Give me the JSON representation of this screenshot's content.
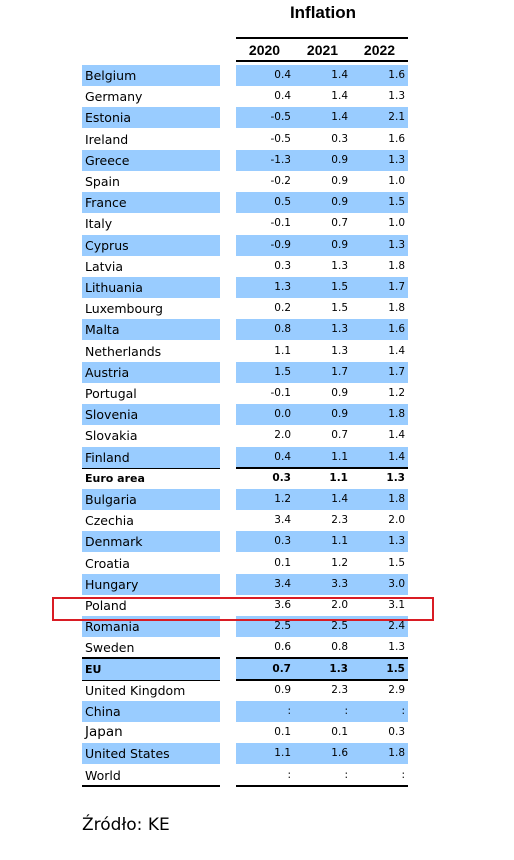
{
  "chart_data": {
    "type": "table",
    "title": "Inflation",
    "columns": [
      "2020",
      "2021",
      "2022"
    ],
    "rows": [
      {
        "name": "Belgium",
        "values": [
          "0.4",
          "1.4",
          "1.6"
        ],
        "shaded": true
      },
      {
        "name": "Germany",
        "values": [
          "0.4",
          "1.4",
          "1.3"
        ],
        "shaded": false
      },
      {
        "name": "Estonia",
        "values": [
          "-0.5",
          "1.4",
          "2.1"
        ],
        "shaded": true
      },
      {
        "name": "Ireland",
        "values": [
          "-0.5",
          "0.3",
          "1.6"
        ],
        "shaded": false
      },
      {
        "name": "Greece",
        "values": [
          "-1.3",
          "0.9",
          "1.3"
        ],
        "shaded": true
      },
      {
        "name": "Spain",
        "values": [
          "-0.2",
          "0.9",
          "1.0"
        ],
        "shaded": false
      },
      {
        "name": "France",
        "values": [
          "0.5",
          "0.9",
          "1.5"
        ],
        "shaded": true
      },
      {
        "name": "Italy",
        "values": [
          "-0.1",
          "0.7",
          "1.0"
        ],
        "shaded": false
      },
      {
        "name": "Cyprus",
        "values": [
          "-0.9",
          "0.9",
          "1.3"
        ],
        "shaded": true
      },
      {
        "name": "Latvia",
        "values": [
          "0.3",
          "1.3",
          "1.8"
        ],
        "shaded": false
      },
      {
        "name": "Lithuania",
        "values": [
          "1.3",
          "1.5",
          "1.7"
        ],
        "shaded": true
      },
      {
        "name": "Luxembourg",
        "values": [
          "0.2",
          "1.5",
          "1.8"
        ],
        "shaded": false
      },
      {
        "name": "Malta",
        "values": [
          "0.8",
          "1.3",
          "1.6"
        ],
        "shaded": true
      },
      {
        "name": "Netherlands",
        "values": [
          "1.1",
          "1.3",
          "1.4"
        ],
        "shaded": false
      },
      {
        "name": "Austria",
        "values": [
          "1.5",
          "1.7",
          "1.7"
        ],
        "shaded": true
      },
      {
        "name": "Portugal",
        "values": [
          "-0.1",
          "0.9",
          "1.2"
        ],
        "shaded": false
      },
      {
        "name": "Slovenia",
        "values": [
          "0.0",
          "0.9",
          "1.8"
        ],
        "shaded": true
      },
      {
        "name": "Slovakia",
        "values": [
          "2.0",
          "0.7",
          "1.4"
        ],
        "shaded": false
      },
      {
        "name": "Finland",
        "values": [
          "0.4",
          "1.1",
          "1.4"
        ],
        "shaded": true
      },
      {
        "name": "Euro area",
        "values": [
          "0.3",
          "1.1",
          "1.3"
        ],
        "shaded": false,
        "bold": true
      },
      {
        "name": "Bulgaria",
        "values": [
          "1.2",
          "1.4",
          "1.8"
        ],
        "shaded": true
      },
      {
        "name": "Czechia",
        "values": [
          "3.4",
          "2.3",
          "2.0"
        ],
        "shaded": false
      },
      {
        "name": "Denmark",
        "values": [
          "0.3",
          "1.1",
          "1.3"
        ],
        "shaded": true
      },
      {
        "name": "Croatia",
        "values": [
          "0.1",
          "1.2",
          "1.5"
        ],
        "shaded": false
      },
      {
        "name": "Hungary",
        "values": [
          "3.4",
          "3.3",
          "3.0"
        ],
        "shaded": true
      },
      {
        "name": "Poland",
        "values": [
          "3.6",
          "2.0",
          "3.1"
        ],
        "shaded": false,
        "highlighted": true
      },
      {
        "name": "Romania",
        "values": [
          "2.5",
          "2.5",
          "2.4"
        ],
        "shaded": true
      },
      {
        "name": "Sweden",
        "values": [
          "0.6",
          "0.8",
          "1.3"
        ],
        "shaded": false
      },
      {
        "name": "EU",
        "values": [
          "0.7",
          "1.3",
          "1.5"
        ],
        "shaded": true,
        "bold": true
      },
      {
        "name": "United Kingdom",
        "values": [
          "0.9",
          "2.3",
          "2.9"
        ],
        "shaded": false
      },
      {
        "name": "China",
        "values": [
          ":",
          ":",
          ":"
        ],
        "shaded": true
      },
      {
        "name": "Japan",
        "values": [
          "0.1",
          "0.1",
          "0.3"
        ],
        "shaded": false
      },
      {
        "name": "United States",
        "values": [
          "1.1",
          "1.6",
          "1.8"
        ],
        "shaded": true
      },
      {
        "name": "World",
        "values": [
          ":",
          ":",
          ":"
        ],
        "shaded": false
      }
    ],
    "highlight_color": "#d91c24",
    "shade_color": "#99ccff"
  },
  "source": "Źródło: KE"
}
